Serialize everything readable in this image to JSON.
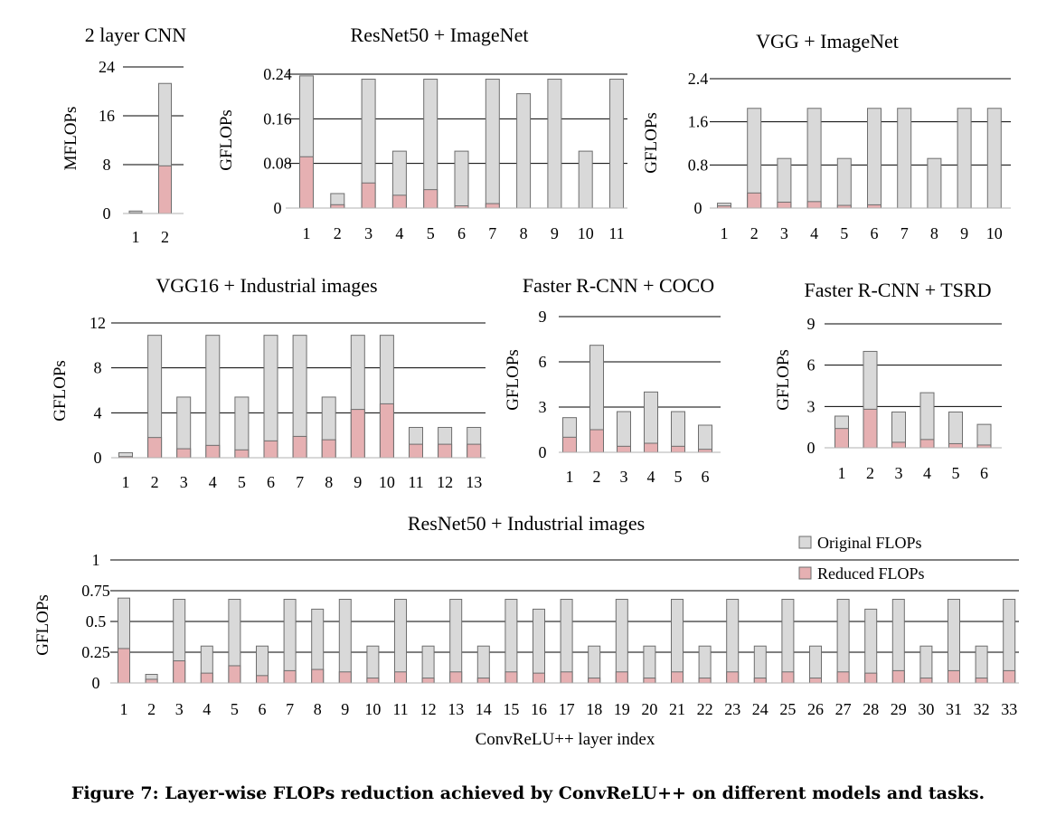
{
  "caption": "Figure 7: Layer-wise FLOPs reduction achieved by ConvReLU++ on different models and tasks.",
  "colors": {
    "original": "#d9d9d9",
    "reduced": "#e6b0b2",
    "bar_stroke": "#6e6e6e",
    "grid": "#000000"
  },
  "chart_data": [
    {
      "type": "bar",
      "title": "2 layer CNN",
      "ylabel": "MFLOPs",
      "xlabel": "",
      "ylim": [
        0,
        24
      ],
      "yticks": [
        "0",
        "8",
        "16",
        "24"
      ],
      "categories": [
        "1",
        "2"
      ],
      "series": [
        {
          "name": "Original FLOPs",
          "values": [
            0.4,
            21.3
          ]
        },
        {
          "name": "Reduced FLOPs",
          "values": [
            0.1,
            7.8
          ]
        }
      ]
    },
    {
      "type": "bar",
      "title": "ResNet50 + ImageNet",
      "ylabel": "GFLOPs",
      "xlabel": "",
      "ylim": [
        0,
        0.24
      ],
      "yticks": [
        "0",
        "0.08",
        "0.16",
        "0.24"
      ],
      "categories": [
        "1",
        "2",
        "3",
        "4",
        "5",
        "6",
        "7",
        "8",
        "9",
        "10",
        "11"
      ],
      "series": [
        {
          "name": "Original FLOPs",
          "values": [
            0.237,
            0.026,
            0.231,
            0.102,
            0.231,
            0.102,
            0.231,
            0.205,
            0.231,
            0.102,
            0.231
          ]
        },
        {
          "name": "Reduced FLOPs",
          "values": [
            0.092,
            0.006,
            0.045,
            0.023,
            0.033,
            0.004,
            0.008,
            0,
            0,
            0,
            0
          ]
        }
      ]
    },
    {
      "type": "bar",
      "title": "VGG + ImageNet",
      "ylabel": "GFLOPs",
      "xlabel": "",
      "ylim": [
        0,
        2.4
      ],
      "yticks": [
        "0",
        "0.8",
        "1.6",
        "2.4"
      ],
      "categories": [
        "1",
        "2",
        "3",
        "4",
        "5",
        "6",
        "7",
        "8",
        "9",
        "10"
      ],
      "series": [
        {
          "name": "Original FLOPs",
          "values": [
            0.09,
            1.85,
            0.92,
            1.85,
            0.92,
            1.85,
            1.85,
            0.92,
            1.85,
            1.85
          ]
        },
        {
          "name": "Reduced FLOPs",
          "values": [
            0.04,
            0.28,
            0.11,
            0.12,
            0.05,
            0.06,
            0,
            0,
            0,
            0
          ]
        }
      ]
    },
    {
      "type": "bar",
      "title": "VGG16 + Industrial images",
      "ylabel": "GFLOPs",
      "xlabel": "",
      "ylim": [
        0,
        12
      ],
      "yticks": [
        "0",
        "4",
        "8",
        "12"
      ],
      "categories": [
        "1",
        "2",
        "3",
        "4",
        "5",
        "6",
        "7",
        "8",
        "9",
        "10",
        "11",
        "12",
        "13"
      ],
      "series": [
        {
          "name": "Original FLOPs",
          "values": [
            0.45,
            10.9,
            5.4,
            10.9,
            5.4,
            10.9,
            10.9,
            5.4,
            10.9,
            10.9,
            2.7,
            2.7,
            2.7
          ]
        },
        {
          "name": "Reduced FLOPs",
          "values": [
            0.1,
            1.8,
            0.8,
            1.1,
            0.7,
            1.5,
            1.9,
            1.6,
            4.3,
            4.8,
            1.2,
            1.2,
            1.2
          ]
        }
      ]
    },
    {
      "type": "bar",
      "title": "Faster R-CNN + COCO",
      "ylabel": "GFLOPs",
      "xlabel": "",
      "ylim": [
        0,
        9
      ],
      "yticks": [
        "0",
        "3",
        "6",
        "9"
      ],
      "categories": [
        "1",
        "2",
        "3",
        "4",
        "5",
        "6"
      ],
      "series": [
        {
          "name": "Original FLOPs",
          "values": [
            2.3,
            7.1,
            2.7,
            4.0,
            2.7,
            1.8
          ]
        },
        {
          "name": "Reduced FLOPs",
          "values": [
            1.0,
            1.5,
            0.4,
            0.6,
            0.4,
            0.2
          ]
        }
      ]
    },
    {
      "type": "bar",
      "title": "Faster R-CNN + TSRD",
      "ylabel": "GFLOPs",
      "xlabel": "",
      "ylim": [
        0,
        9
      ],
      "yticks": [
        "0",
        "3",
        "6",
        "9"
      ],
      "categories": [
        "1",
        "2",
        "3",
        "4",
        "5",
        "6"
      ],
      "series": [
        {
          "name": "Original FLOPs",
          "values": [
            2.3,
            7.0,
            2.6,
            4.0,
            2.6,
            1.7
          ]
        },
        {
          "name": "Reduced FLOPs",
          "values": [
            1.4,
            2.8,
            0.4,
            0.6,
            0.3,
            0.2
          ]
        }
      ]
    },
    {
      "type": "bar",
      "title": "ResNet50 + Industrial images",
      "ylabel": "GFLOPs",
      "xlabel": "ConvReLU++ layer index",
      "ylim": [
        0,
        1
      ],
      "yticks": [
        "0",
        "0.25",
        "0.5",
        "0.75",
        "1"
      ],
      "legend": "top-right",
      "categories": [
        "1",
        "2",
        "3",
        "4",
        "5",
        "6",
        "7",
        "8",
        "9",
        "10",
        "11",
        "12",
        "13",
        "14",
        "15",
        "16",
        "17",
        "18",
        "19",
        "20",
        "21",
        "22",
        "23",
        "24",
        "25",
        "26",
        "27",
        "28",
        "29",
        "30",
        "31",
        "32",
        "33"
      ],
      "series": [
        {
          "name": "Original FLOPs",
          "values": [
            0.69,
            0.07,
            0.68,
            0.3,
            0.68,
            0.3,
            0.68,
            0.6,
            0.68,
            0.3,
            0.68,
            0.3,
            0.68,
            0.3,
            0.68,
            0.6,
            0.68,
            0.3,
            0.68,
            0.3,
            0.68,
            0.3,
            0.68,
            0.3,
            0.68,
            0.3,
            0.68,
            0.6,
            0.68,
            0.3,
            0.68,
            0.3,
            0.68
          ]
        },
        {
          "name": "Reduced FLOPs",
          "values": [
            0.28,
            0.03,
            0.18,
            0.08,
            0.14,
            0.06,
            0.1,
            0.11,
            0.09,
            0.04,
            0.09,
            0.04,
            0.09,
            0.04,
            0.09,
            0.08,
            0.09,
            0.04,
            0.09,
            0.04,
            0.09,
            0.04,
            0.09,
            0.04,
            0.09,
            0.04,
            0.09,
            0.08,
            0.1,
            0.04,
            0.1,
            0.04,
            0.1
          ]
        }
      ]
    }
  ]
}
